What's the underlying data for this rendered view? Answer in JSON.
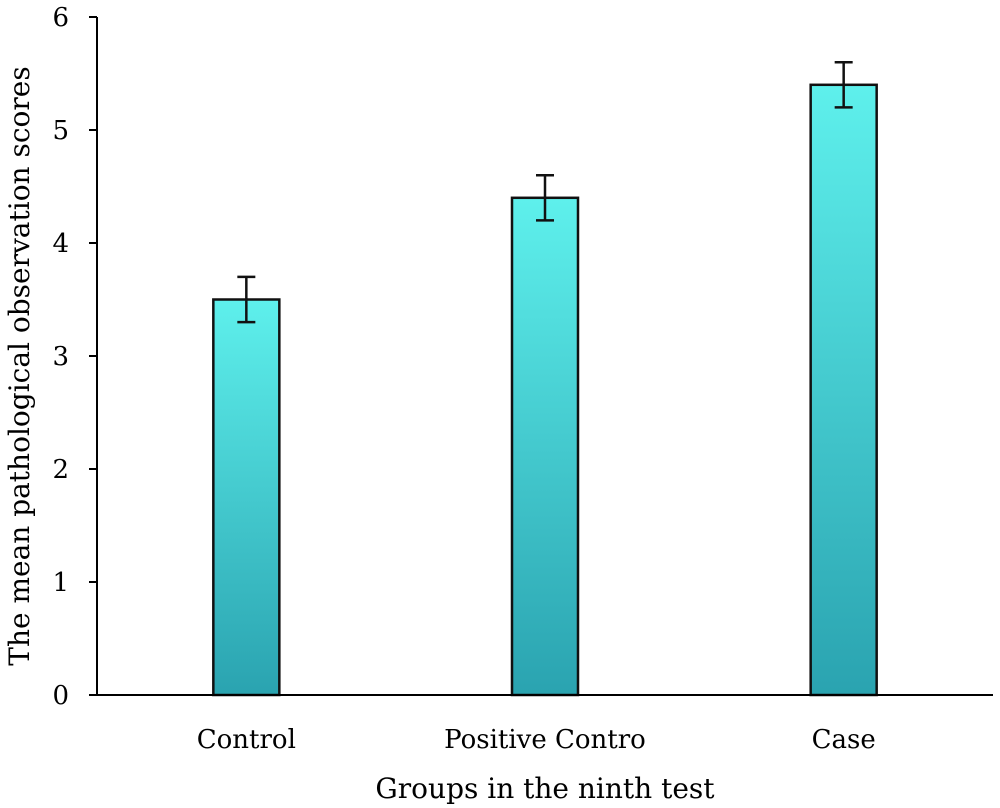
{
  "chart_data": {
    "type": "bar",
    "title": "",
    "xlabel": "Groups in the ninth test",
    "ylabel": "The mean pathological observation scores",
    "categories": [
      "Control",
      "Positive Contro",
      "Case"
    ],
    "values": [
      3.5,
      4.4,
      5.4
    ],
    "error_bars": [
      0.2,
      0.2,
      0.2
    ],
    "ylim": [
      0,
      6
    ],
    "yticks": [
      0,
      1,
      2,
      3,
      4,
      5,
      6
    ],
    "ytick_labels": [
      "0",
      "1",
      "2",
      "3",
      "4",
      "5",
      "6"
    ],
    "grid": false,
    "legend": "none",
    "bar_gradient": {
      "top": "#5ef0ec",
      "bottom": "#2aa3b0"
    },
    "bar_edge_color": "#111111"
  }
}
